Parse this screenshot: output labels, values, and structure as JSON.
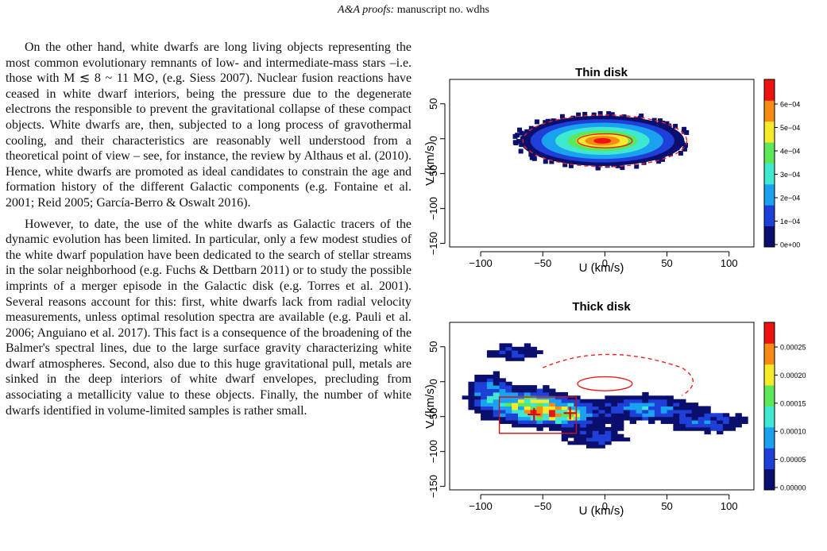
{
  "header": {
    "journal": "A&A proofs:",
    "manuscript": "manuscript no. wdhs"
  },
  "body_text": {
    "para1": "On the other hand, white dwarfs are long living objects representing the most common evolutionary remnants of low- and intermediate-mass stars –i.e. those with M ≲ 8 ~ 11 M⊙, (e.g. Siess 2007). Nuclear fusion reactions have ceased in white dwarf interiors, being the pressure due to the degenerate electrons the responsible to prevent the gravitational collapse of these compact objects. White dwarfs are, then, subjected to a long process of gravothermal cooling, and their characteristics are reasonably well understood from a theoretical point of view – see, for instance, the review by Althaus et al. (2010). Hence, white dwarfs are promoted as ideal candidates to constrain the age and formation history of the different Galactic components (e.g. Fontaine et al. 2001; Reid 2005; García-Berro & Oswalt 2016).",
    "para2": "However, to date, the use of the white dwarfs as Galactic tracers of the dynamic evolution has been limited. In particular, only a few modest studies of the white dwarf population have been dedicated to the search of stellar streams in the solar neighborhood (e.g. Fuchs & Dettbarn 2011) or to study the possible imprints of a merger episode in the Galactic disk (e.g. Torres et al. 2001). Several reasons account for this: first, white dwarfs lack from radial velocity measurements, unless optimal resolution spectra are available (e.g. Pauli et al. 2006; Anguiano et al. 2017). This fact is a consequence of the broadening of the Balmer's spectral lines, due to the large surface gravity characterizing white dwarf atmospheres. Second, also due to this huge gravitational pull, metals are sinked in the deep interiors of white dwarf envelopes, precluding from associating a metallicity value to these objects. Finally, the number of white dwarfs identified in volume-limited samples is rather small."
  },
  "chart_data": [
    {
      "type": "heatmap",
      "title": "Thin disk",
      "xlabel": "U (km/s)",
      "ylabel": "V (km/s)",
      "xlim": [
        -125,
        120
      ],
      "ylim": [
        -155,
        85
      ],
      "xticks": [
        "−100",
        "−50",
        "0",
        "50",
        "100"
      ],
      "yticks": [
        "50",
        "0",
        "−50",
        "−100",
        "−150"
      ],
      "colorbar_ticks": [
        "6e−04",
        "5e−04",
        "4e−04",
        "3e−04",
        "2e−04",
        "1e−04",
        "0e+00"
      ],
      "density_center": {
        "U": -2,
        "V": -3
      },
      "overlays": [
        "red dashed ellipse",
        "red solid ellipse"
      ]
    },
    {
      "type": "heatmap",
      "title": "Thick disk",
      "xlabel": "U (km/s)",
      "ylabel": "V (km/s)",
      "xlim": [
        -125,
        120
      ],
      "ylim": [
        -155,
        85
      ],
      "xticks": [
        "−100",
        "−50",
        "0",
        "50",
        "100"
      ],
      "yticks": [
        "50",
        "0",
        "−50",
        "−100",
        "−150"
      ],
      "colorbar_ticks": [
        "0.00025",
        "0.00020",
        "0.00015",
        "0.00010",
        "0.00005",
        "0.00000"
      ],
      "markers": [
        {
          "U": -57,
          "V": -47
        },
        {
          "U": -28,
          "V": -45
        }
      ],
      "overlays": [
        "red dashed ellipse",
        "red solid ellipse",
        "red rectangle"
      ]
    }
  ],
  "colors": {
    "dashed_ellipse": "#ee2222",
    "marker": "#dd0000"
  }
}
